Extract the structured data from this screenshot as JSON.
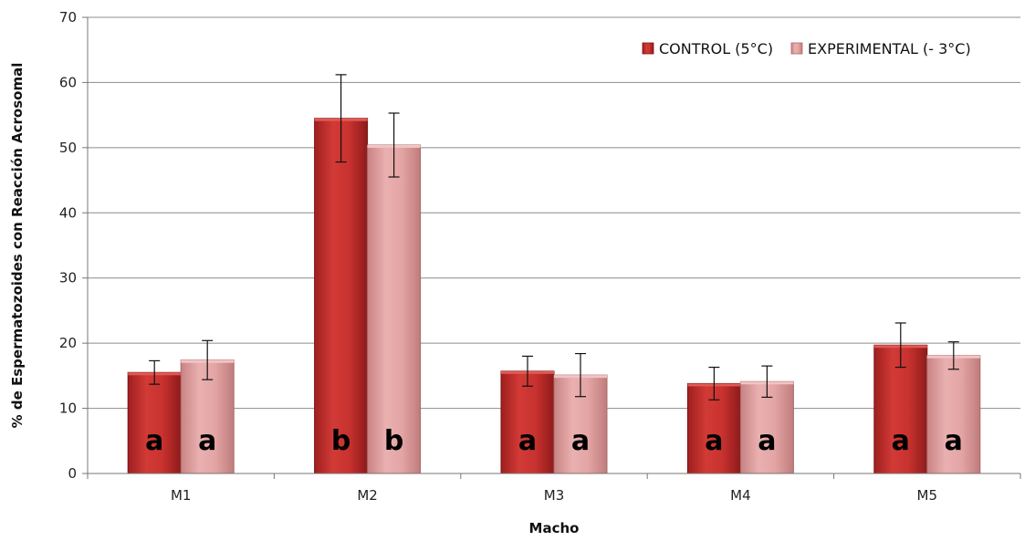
{
  "chart_data": {
    "type": "bar",
    "categories": [
      "M1",
      "M2",
      "M3",
      "M4",
      "M5"
    ],
    "xlabel": "Macho",
    "ylabel": "% de Espermatozoides con Reacción Acrosomal",
    "ylim": [
      0,
      70
    ],
    "yticks": [
      0,
      10,
      20,
      30,
      40,
      50,
      60,
      70
    ],
    "grid": true,
    "legend_position": "top-right",
    "series": [
      {
        "name": "CONTROL (5°C)",
        "color": "#c0302e",
        "values": [
          15.5,
          54.5,
          15.7,
          13.8,
          19.7
        ],
        "error": [
          1.8,
          6.7,
          2.3,
          2.5,
          3.4
        ],
        "significance": [
          "a",
          "b",
          "a",
          "a",
          "a"
        ]
      },
      {
        "name": "EXPERIMENTAL (- 3°C)",
        "color": "#de9a9a",
        "values": [
          17.4,
          50.4,
          15.1,
          14.1,
          18.1
        ],
        "error": [
          3.0,
          4.9,
          3.3,
          2.4,
          2.1
        ],
        "significance": [
          "a",
          "b",
          "a",
          "a",
          "a"
        ]
      }
    ]
  }
}
